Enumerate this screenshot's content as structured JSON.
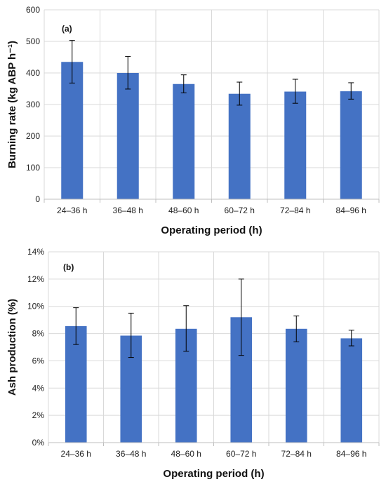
{
  "chart_data": [
    {
      "type": "bar",
      "panel_label": "(a)",
      "title": "",
      "xlabel": "Operating period (h)",
      "ylabel": "Burning rate (kg ABP h⁻¹)",
      "categories": [
        "24–36 h",
        "36–48 h",
        "48–60 h",
        "60–72 h",
        "72–84 h",
        "84–96 h"
      ],
      "values": [
        435,
        400,
        365,
        334,
        341,
        342
      ],
      "error_low": [
        368,
        349,
        337,
        298,
        304,
        317
      ],
      "error_high": [
        503,
        452,
        394,
        371,
        380,
        369
      ],
      "ylim": [
        0,
        600
      ],
      "yticks": [
        0,
        100,
        200,
        300,
        400,
        500,
        600
      ],
      "ytick_labels": [
        "0",
        "100",
        "200",
        "300",
        "400",
        "500",
        "600"
      ],
      "grid": true,
      "bar_color": "#4472C4"
    },
    {
      "type": "bar",
      "panel_label": "(b)",
      "title": "",
      "xlabel": "Operating period (h)",
      "ylabel": "Ash production (%)",
      "categories": [
        "24–36 h",
        "36–48 h",
        "48–60 h",
        "60–72 h",
        "72–84 h",
        "84–96 h"
      ],
      "values": [
        8.55,
        7.85,
        8.35,
        9.2,
        8.35,
        7.65
      ],
      "error_low": [
        7.2,
        6.25,
        6.7,
        6.4,
        7.4,
        7.1
      ],
      "error_high": [
        9.9,
        9.5,
        10.05,
        12.0,
        9.3,
        8.25
      ],
      "ylim": [
        0,
        14
      ],
      "yticks": [
        0,
        2,
        4,
        6,
        8,
        10,
        12,
        14
      ],
      "ytick_labels": [
        "0%",
        "2%",
        "4%",
        "6%",
        "8%",
        "10%",
        "12%",
        "14%"
      ],
      "grid": true,
      "bar_color": "#4472C4"
    }
  ]
}
